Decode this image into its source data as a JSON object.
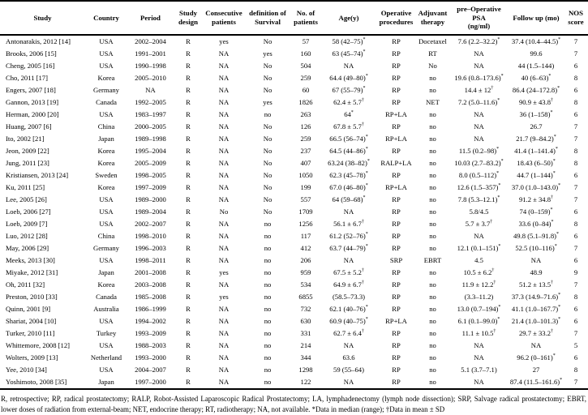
{
  "table": {
    "columns": [
      {
        "label": "Study"
      },
      {
        "label": "Country"
      },
      {
        "label": "Period"
      },
      {
        "label": "Study\ndesign"
      },
      {
        "label": "Consecutive\npatients"
      },
      {
        "label": "definition of\nSurvival"
      },
      {
        "label": "No. of\npatients"
      },
      {
        "label": "Age(y)"
      },
      {
        "label": "Operative\nprocedures"
      },
      {
        "label": "Adjuvant\ntherapy"
      },
      {
        "label": "pre–Operative PSA\n(ng/ml)"
      },
      {
        "label": "Follow up (mo)"
      },
      {
        "label": "NOS\nscore"
      }
    ],
    "rows": [
      [
        "Antonarakis, 2012 [14]",
        "USA",
        "2002–2004",
        "R",
        "yes",
        "No",
        "57",
        "58 (42–75)*",
        "RP",
        "Docetaxel",
        "7.6 (2.2–32.2)*",
        "37.4 (10.4–44.5)*",
        "7"
      ],
      [
        "Brooks, 2006 [15]",
        "USA",
        "1991–2001",
        "R",
        "NA",
        "yes",
        "160",
        "63 (45–74)*",
        "RP",
        "RT",
        "NA",
        "99.6",
        "7"
      ],
      [
        "Cheng, 2005 [16]",
        "USA",
        "1990–1998",
        "R",
        "NA",
        "No",
        "504",
        "NA",
        "RP",
        "No",
        "NA",
        "44 (1.5–144)",
        "6"
      ],
      [
        "Cho, 2011 [17]",
        "Korea",
        "2005–2010",
        "R",
        "NA",
        "No",
        "259",
        "64.4 (49–80)*",
        "RP",
        "no",
        "19.6 (0.8–173.6)*",
        "40 (6–63)*",
        "8"
      ],
      [
        "Engers, 2007 [18]",
        "Germany",
        "NA",
        "R",
        "NA",
        "No",
        "60",
        "67 (55–79)*",
        "RP",
        "no",
        "14.4 ± 12†",
        "86.4 (24–172.8)*",
        "6"
      ],
      [
        "Gannon, 2013 [19]",
        "Canada",
        "1992–2005",
        "R",
        "NA",
        "yes",
        "1826",
        "62.4 ± 5.7†",
        "RP",
        "NET",
        "7.2 (5.0–11.6)*",
        "90.9 ± 43.8†",
        "8"
      ],
      [
        "Herman, 2000 [20]",
        "USA",
        "1983–1997",
        "R",
        "NA",
        "no",
        "263",
        "64*",
        "RP+LA",
        "no",
        "NA",
        "36 (1–158)*",
        "6"
      ],
      [
        "Huang, 2007 [6]",
        "China",
        "2000–2005",
        "R",
        "NA",
        "No",
        "126",
        "67.8 ± 5.7†",
        "RP",
        "no",
        "NA",
        "26.7",
        "7"
      ],
      [
        "Ito, 2002 [21]",
        "Japan",
        "1989–1998",
        "R",
        "NA",
        "No",
        "259",
        "66.5 (56–74)*",
        "RP+LA",
        "no",
        "NA",
        "21.7 (9–84.2)*",
        "7"
      ],
      [
        "Jeon, 2009 [22]",
        "Korea",
        "1995–2004",
        "R",
        "NA",
        "No",
        "237",
        "64.5 (44–86)*",
        "RP",
        "no",
        "11.5 (0.2–98)*",
        "41.4 (1–141.4)*",
        "8"
      ],
      [
        "Jung, 2011 [23]",
        "Korea",
        "2005–2009",
        "R",
        "NA",
        "No",
        "407",
        "63.24 (38–82)*",
        "RALP+LA",
        "no",
        "10.03 (2.7–83.2)*",
        "18.43 (6–50)*",
        "8"
      ],
      [
        "Kristiansen, 2013 [24]",
        "Sweden",
        "1998–2005",
        "R",
        "NA",
        "No",
        "1050",
        "62.3 (45–78)*",
        "RP",
        "no",
        "8.0 (0.5–112)*",
        "44.7 (1–144)*",
        "6"
      ],
      [
        "Ku, 2011 [25]",
        "Korea",
        "1997–2009",
        "R",
        "NA",
        "No",
        "199",
        "67.0 (46–80)*",
        "RP+LA",
        "no",
        "12.6 (1.5–357)*",
        "37.0 (1.0–143.0)*",
        "7"
      ],
      [
        "Lee, 2005 [26]",
        "USA",
        "1989–2000",
        "R",
        "NA",
        "No",
        "557",
        "64 (59–68)*",
        "RP",
        "no",
        "7.8 (5.3–12.1)*",
        "91.2 ± 34.8†",
        "7"
      ],
      [
        "Loeb, 2006 [27]",
        "USA",
        "1989–2004",
        "R",
        "No",
        "No",
        "1709",
        "NA",
        "RP",
        "no",
        "5.8/4.5",
        "74 (0–159)*",
        "6"
      ],
      [
        "Loeb, 2009 [7]",
        "USA",
        "2002–2007",
        "R",
        "NA",
        "no",
        "1256",
        "56.1 ± 6.7†",
        "RP",
        "no",
        "5.7 ± 3.7†",
        "33.6 (0–84)*",
        "8"
      ],
      [
        "Luo, 2012 [28]",
        "China",
        "1998–2010",
        "R",
        "NA",
        "no",
        "117",
        "61.2 (52–76)*",
        "RP",
        "no",
        "NA",
        "49.8 (5.1–91.8)*",
        "6"
      ],
      [
        "May, 2006 [29]",
        "Germany",
        "1996–2003",
        "R",
        "NA",
        "no",
        "412",
        "63.7 (44–79)*",
        "RP",
        "no",
        "12.1 (0.1–151)*",
        "52.5 (10–116)*",
        "7"
      ],
      [
        "Meeks, 2013 [30]",
        "USA",
        "1998–2011",
        "R",
        "NA",
        "no",
        "206",
        "NA",
        "SRP",
        "EBRT",
        "4.5",
        "NA",
        "6"
      ],
      [
        "Miyake, 2012 [31]",
        "Japan",
        "2001–2008",
        "R",
        "yes",
        "no",
        "959",
        "67.5 ± 5.2†",
        "RP",
        "no",
        "10.5 ± 6.2†",
        "48.9",
        "9"
      ],
      [
        "Oh, 2011 [32]",
        "Korea",
        "2003–2008",
        "R",
        "NA",
        "no",
        "534",
        "64.9 ± 6.7†",
        "RP",
        "no",
        "11.9 ± 12.2†",
        "51.2 ± 13.5†",
        "7"
      ],
      [
        "Preston, 2010 [33]",
        "Canada",
        "1985–2008",
        "R",
        "yes",
        "no",
        "6855",
        "(58.5–73.3)",
        "RP",
        "no",
        "(3.3–11.2)",
        "37.3 (14.9–71.6)*",
        "8"
      ],
      [
        "Quinn, 2001 [9]",
        "Australia",
        "1986–1999",
        "R",
        "NA",
        "no",
        "732",
        "62.1 (40–76)*",
        "RP",
        "no",
        "13.0 (0.7–194)*",
        "41.1 (1.0–167.7)*",
        "6"
      ],
      [
        "Shariat, 2004 [10]",
        "USA",
        "1994–2002",
        "R",
        "NA",
        "no",
        "630",
        "60.9 (40–75)*",
        "RP+LA",
        "no",
        "6.1 (0.1–99.0)*",
        "21.4 (1.0–101.3)*",
        "6"
      ],
      [
        "Turker, 2010 [11]",
        "Turkey",
        "1993–2009",
        "R",
        "NA",
        "no",
        "331",
        "62.7 ± 6.4†",
        "RP",
        "no",
        "11.1 ± 10.5†",
        "29.7 ± 33.2†",
        "7"
      ],
      [
        "Whittemore, 2008 [12]",
        "USA",
        "1988–2003",
        "R",
        "NA",
        "no",
        "214",
        "NA",
        "RP",
        "no",
        "NA",
        "NA",
        "5"
      ],
      [
        "Wolters, 2009 [13]",
        "Netherland",
        "1993–2000",
        "R",
        "NA",
        "no",
        "344",
        "63.6",
        "RP",
        "no",
        "NA",
        "96.2 (0–161)*",
        "6"
      ],
      [
        "Yee, 2010 [34]",
        "USA",
        "2004–2007",
        "R",
        "NA",
        "no",
        "1298",
        "59 (55–64)",
        "RP",
        "no",
        "5.1 (3.7–7.1)",
        "27",
        "8"
      ],
      [
        "Yoshimoto, 2008 [35]",
        "Japan",
        "1997–2000",
        "R",
        "NA",
        "no",
        "122",
        "NA",
        "RP",
        "no",
        "NA",
        "87.4 (11.5–161.6)*",
        "7"
      ]
    ]
  },
  "footnote": {
    "text": "R, retrospective; RP, radical prostatectomy; RALP, Robot-Assisted Laparoscopic Radical Prostatectomy; LA, lymphadenectomy (lymph node dissection); SRP, Salvage radical prostatectomy; EBRT, lower doses of radiation from external-beam; NET, endocrine therapy; RT, radiotherapy; NA, not available. *Data in median (range); †Data in mean ± SD"
  }
}
